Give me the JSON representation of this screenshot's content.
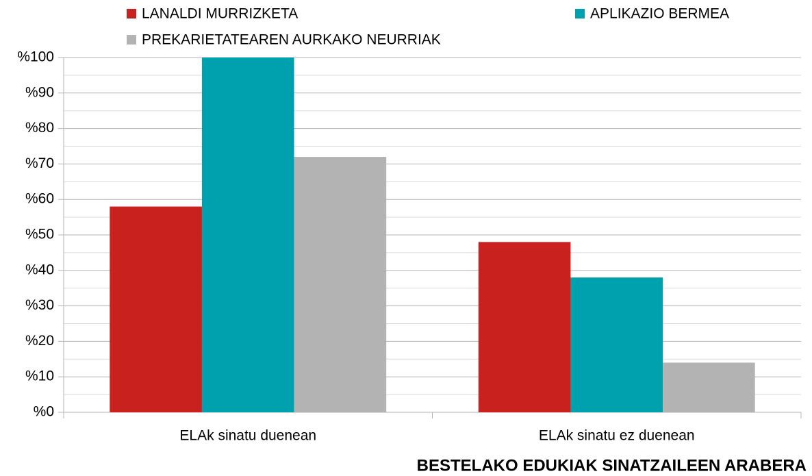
{
  "chart_data": {
    "type": "bar",
    "title": "BESTELAKO EDUKIAK SINATZAILEEN ARABERA",
    "categories": [
      "ELAk sinatu duenean",
      "ELAk sinatu ez duenean"
    ],
    "series": [
      {
        "name": "LANALDI MURRIZKETA",
        "color": "#c9211e",
        "values": [
          58,
          48
        ]
      },
      {
        "name": "APLIKAZIO BERMEA",
        "color": "#00a1ae",
        "values": [
          100,
          38
        ]
      },
      {
        "name": "PREKARIETATEAREN AURKAKO NEURRIAK",
        "color": "#b3b3b3",
        "values": [
          72,
          14
        ]
      }
    ],
    "ylim": [
      0,
      100
    ],
    "yticks": [
      {
        "value": 0,
        "label": "%0"
      },
      {
        "value": 10,
        "label": "%10"
      },
      {
        "value": 20,
        "label": "%20"
      },
      {
        "value": 30,
        "label": "%30"
      },
      {
        "value": 40,
        "label": "%40"
      },
      {
        "value": 50,
        "label": "%50"
      },
      {
        "value": 60,
        "label": "%60"
      },
      {
        "value": 70,
        "label": "%70"
      },
      {
        "value": 80,
        "label": "%80"
      },
      {
        "value": 90,
        "label": "%90"
      },
      {
        "value": 100,
        "label": "%100"
      }
    ],
    "minor_yticks": [
      5,
      15,
      25,
      35,
      45,
      55,
      65,
      75,
      85,
      95
    ],
    "grid": true,
    "legend": "top"
  }
}
